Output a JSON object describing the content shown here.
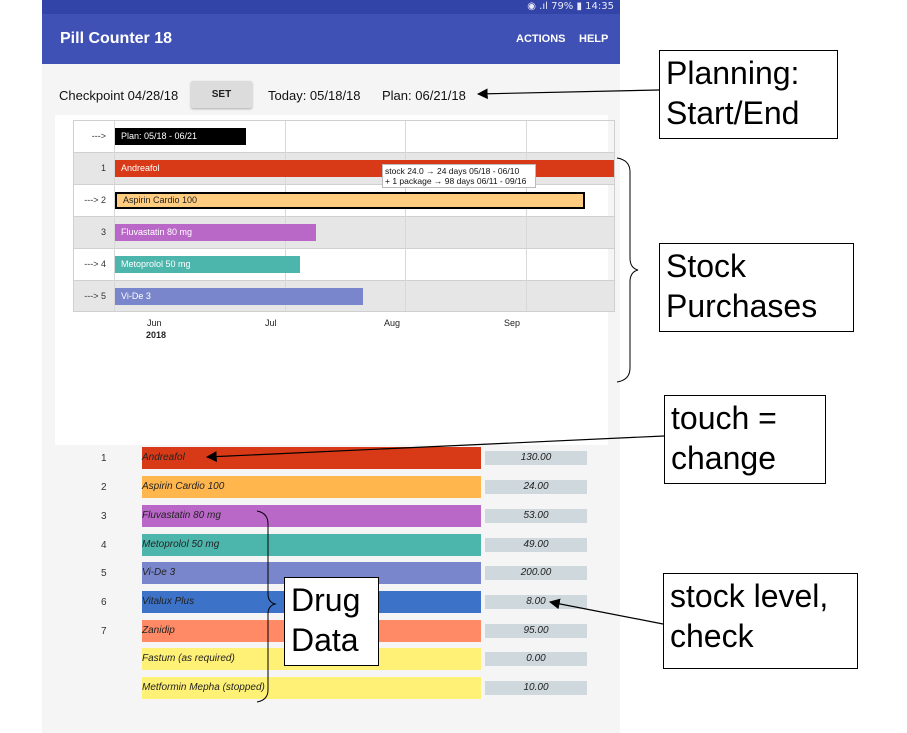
{
  "statusbar": {
    "text": "◉ .ıl 79% ▮ 14:35"
  },
  "appbar": {
    "title": "Pill Counter 18",
    "actions_label": "ACTIONS",
    "help_label": "HELP"
  },
  "header": {
    "checkpoint_text": "Checkpoint 04/28/18",
    "set_label": "SET",
    "today_text": "Today: 05/18/18",
    "plan_text": "Plan: 06/21/18"
  },
  "gantt": {
    "rows": [
      {
        "label": "--->",
        "bar_label": "Plan: 05/18 - 06/21"
      },
      {
        "label": "1",
        "bar_label": "Andreafol"
      },
      {
        "label": "---> 2",
        "bar_label": "Aspirin Cardio 100"
      },
      {
        "label": "3",
        "bar_label": "Fluvastatin 80 mg"
      },
      {
        "label": "---> 4",
        "bar_label": "Metoprolol 50 mg"
      },
      {
        "label": "---> 5",
        "bar_label": "Vi-De 3"
      }
    ],
    "tooltip_line1": "stock 24.0 → 24 days 05/18 - 06/10",
    "tooltip_line2": "+ 1 package → 98 days 06/11 - 09/16",
    "months": [
      "Jun",
      "Jul",
      "Aug",
      "Sep"
    ],
    "year": "2018"
  },
  "drugs": [
    {
      "idx": "1",
      "name": "Andreafol",
      "value": "130.00",
      "color": "#d83a17"
    },
    {
      "idx": "2",
      "name": "Aspirin Cardio 100",
      "value": "24.00",
      "color": "#ffb74d"
    },
    {
      "idx": "3",
      "name": "Fluvastatin 80 mg",
      "value": "53.00",
      "color": "#ba68c8"
    },
    {
      "idx": "4",
      "name": "Metoprolol 50 mg",
      "value": "49.00",
      "color": "#4db6ac"
    },
    {
      "idx": "5",
      "name": "Vi-De 3",
      "value": "200.00",
      "color": "#7986cb"
    },
    {
      "idx": "6",
      "name": "Vitalux Plus",
      "value": "8.00",
      "color": "#3c72c8"
    },
    {
      "idx": "7",
      "name": "Zanidip",
      "value": "95.00",
      "color": "#ff8a65"
    },
    {
      "idx": "",
      "name": "Fastum (as required)",
      "value": "0.00",
      "color": "#fff176"
    },
    {
      "idx": "",
      "name": "Metformin Mepha (stopped)",
      "value": "10.00",
      "color": "#fff176"
    }
  ],
  "annotations": {
    "planning": [
      "Planning:",
      "Start/End"
    ],
    "stock_purchases": [
      "Stock",
      "Purchases"
    ],
    "touch_change": [
      "touch =",
      "change"
    ],
    "drug_data": [
      "Drug",
      "Data"
    ],
    "stock_level": [
      "stock level,",
      "check"
    ]
  },
  "colors": {
    "appbar": "#3f51b5",
    "statusbar": "#3344a8",
    "plan_bar": "#000000",
    "set_button": "#dcdcdc",
    "value_field": "#cfd8dc"
  }
}
